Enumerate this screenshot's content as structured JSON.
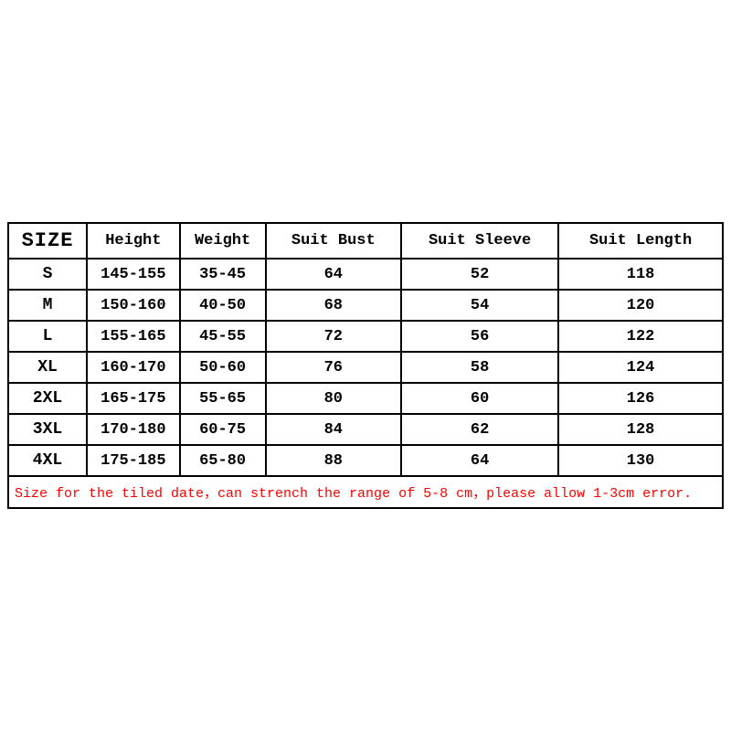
{
  "table": {
    "type": "table",
    "border_color": "#000000",
    "background_color": "#ffffff",
    "text_color": "#000000",
    "note_color": "#ff0000",
    "font_family": "Courier New",
    "header_fontsize": 17,
    "size_header_fontsize": 22,
    "cell_fontsize": 17,
    "columns": [
      {
        "key": "size",
        "label": "SIZE",
        "width_pct": 11
      },
      {
        "key": "height",
        "label": "Height",
        "width_pct": 13
      },
      {
        "key": "weight",
        "label": "Weight",
        "width_pct": 12
      },
      {
        "key": "bust",
        "label": "Suit Bust",
        "width_pct": 19
      },
      {
        "key": "sleeve",
        "label": "Suit Sleeve",
        "width_pct": 22
      },
      {
        "key": "length",
        "label": "Suit Length",
        "width_pct": 23
      }
    ],
    "rows": [
      {
        "size": "S",
        "height": "145-155",
        "weight": "35-45",
        "bust": "64",
        "sleeve": "52",
        "length": "118"
      },
      {
        "size": "M",
        "height": "150-160",
        "weight": "40-50",
        "bust": "68",
        "sleeve": "54",
        "length": "120"
      },
      {
        "size": "L",
        "height": "155-165",
        "weight": "45-55",
        "bust": "72",
        "sleeve": "56",
        "length": "122"
      },
      {
        "size": "XL",
        "height": "160-170",
        "weight": "50-60",
        "bust": "76",
        "sleeve": "58",
        "length": "124"
      },
      {
        "size": "2XL",
        "height": "165-175",
        "weight": "55-65",
        "bust": "80",
        "sleeve": "60",
        "length": "126"
      },
      {
        "size": "3XL",
        "height": "170-180",
        "weight": "60-75",
        "bust": "84",
        "sleeve": "62",
        "length": "128"
      },
      {
        "size": "4XL",
        "height": "175-185",
        "weight": "65-80",
        "bust": "88",
        "sleeve": "64",
        "length": "130"
      }
    ],
    "note": "Size for the tiled date，can strench the range of 5-8 cm，please allow 1-3cm error."
  }
}
